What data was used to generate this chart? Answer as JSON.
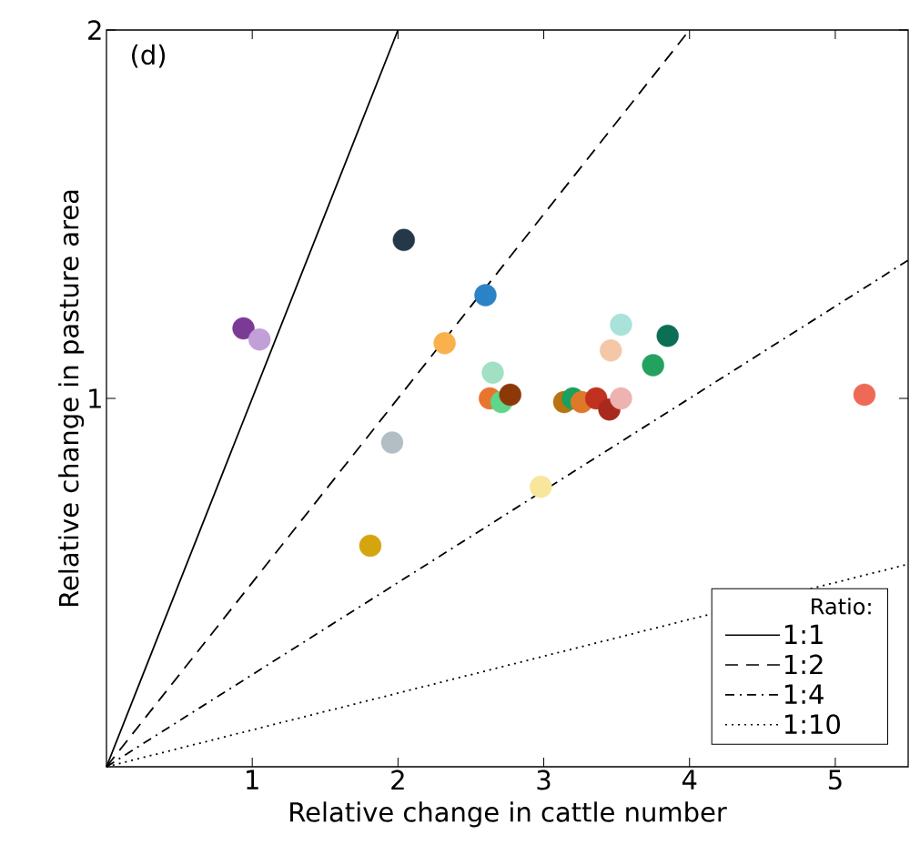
{
  "chart_data": {
    "type": "scatter",
    "xlabel": "Relative change in cattle number",
    "ylabel": "Relative change in pasture area",
    "legend_title": "Ratio:",
    "legend": "bottom right",
    "grid": false,
    "annotations": [
      "(d)"
    ],
    "xlim": [
      0,
      5.5
    ],
    "ylim": [
      0,
      2
    ],
    "xticks": [
      1,
      2,
      3,
      4,
      5
    ],
    "yticks": [
      1,
      2
    ],
    "series": [
      {
        "marker": "circle",
        "x": [
          0.94,
          1.05,
          2.04,
          2.6,
          2.32,
          1.96,
          1.81,
          2.65,
          2.63,
          2.71,
          2.77,
          2.98,
          3.14,
          3.2,
          3.26,
          3.36,
          3.45,
          3.53,
          3.46,
          3.53,
          3.75,
          3.85,
          5.2
        ],
        "values": [
          1.19,
          1.16,
          1.43,
          1.28,
          1.15,
          0.88,
          0.6,
          1.07,
          1.0,
          0.99,
          1.01,
          0.76,
          0.99,
          1.0,
          0.99,
          1.0,
          0.97,
          1.0,
          1.13,
          1.2,
          1.09,
          1.17,
          1.01
        ],
        "colors": [
          "#7b3a96",
          "#c29fd8",
          "#253848",
          "#2b83c6",
          "#f9b14e",
          "#b3bec4",
          "#d4a50e",
          "#a2e0c4",
          "#e8742e",
          "#5fd68a",
          "#8c3808",
          "#f7e69c",
          "#b87410",
          "#1aa060",
          "#e0782a",
          "#c0321f",
          "#a82a1c",
          "#ecb3b0",
          "#f4c8a6",
          "#a8e2d8",
          "#22a25e",
          "#0c6e55",
          "#ef6a56"
        ]
      },
      {
        "type": "line",
        "name": "1:1",
        "x": [
          0,
          2
        ],
        "values": [
          0,
          2
        ],
        "color": "#000000",
        "line_style": "solid"
      },
      {
        "type": "line",
        "name": "1:2",
        "x": [
          0,
          4
        ],
        "values": [
          0,
          2
        ],
        "color": "#000000",
        "line_style": "dashed"
      },
      {
        "type": "line",
        "name": "1:4",
        "x": [
          0,
          5.5
        ],
        "values": [
          0,
          1.375
        ],
        "color": "#000000",
        "line_style": "dashdotted"
      },
      {
        "type": "line",
        "name": "1:10",
        "x": [
          0,
          5.5
        ],
        "values": [
          0,
          0.55
        ],
        "color": "#000000",
        "line_style": "dotted"
      }
    ]
  }
}
